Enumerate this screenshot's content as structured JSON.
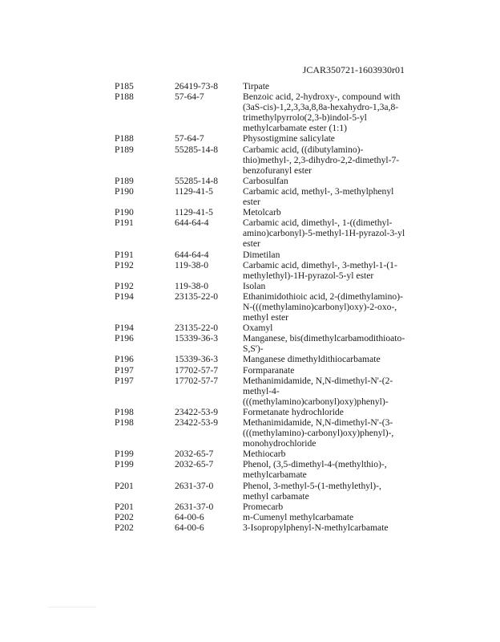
{
  "header": {
    "doc_id": "JCAR350721-1603930r01"
  },
  "rows": [
    {
      "code": "P185",
      "cas": "26419-73-8",
      "name": [
        "Tirpate"
      ]
    },
    {
      "code": "P188",
      "cas": "57-64-7",
      "name": [
        "Benzoic acid, 2-hydroxy-, compound with",
        "(3aS-cis)-1,2,3,3a,8,8a-hexahydro-1,3a,8-",
        "trimethylpyrrolo(2,3-b)indol-5-yl",
        "methylcarbamate ester (1:1)"
      ]
    },
    {
      "code": "P188",
      "cas": "57-64-7",
      "name": [
        "Physostigmine salicylate"
      ]
    },
    {
      "code": "P189",
      "cas": "55285-14-8",
      "name": [
        "Carbamic acid, ((dibutylamino)-",
        "thio)methyl-, 2,3-dihydro-2,2-dimethyl-7-",
        "benzofuranyl ester"
      ]
    },
    {
      "code": "P189",
      "cas": "55285-14-8",
      "name": [
        "Carbosulfan"
      ]
    },
    {
      "code": "P190",
      "cas": "1129-41-5",
      "name": [
        "Carbamic acid, methyl-, 3-methylphenyl",
        "ester"
      ]
    },
    {
      "code": "P190",
      "cas": "1129-41-5",
      "name": [
        "Metolcarb"
      ]
    },
    {
      "code": "P191",
      "cas": "644-64-4",
      "name": [
        "Carbamic acid, dimethyl-, 1-((dimethyl-",
        "amino)carbonyl)-5-methyl-1H-pyrazol-3-yl",
        "ester"
      ]
    },
    {
      "code": "P191",
      "cas": "644-64-4",
      "name": [
        "Dimetilan"
      ]
    },
    {
      "code": "P192",
      "cas": "119-38-0",
      "name": [
        "Carbamic acid, dimethyl-, 3-methyl-1-(1-",
        "methylethyl)-1H-pyrazol-5-yl ester"
      ]
    },
    {
      "code": "P192",
      "cas": "119-38-0",
      "name": [
        "Isolan"
      ]
    },
    {
      "code": "P194",
      "cas": "23135-22-0",
      "name": [
        "Ethanimidothioic acid, 2-(dimethylamino)-",
        "N-(((methylamino)carbonyl)oxy)-2-oxo-,",
        "methyl ester"
      ]
    },
    {
      "code": "P194",
      "cas": "23135-22-0",
      "name": [
        "Oxamyl"
      ]
    },
    {
      "code": "P196",
      "cas": "15339-36-3",
      "name": [
        "Manganese, bis(dimethylcarbamodithioato-",
        "S,S')-"
      ]
    },
    {
      "code": "P196",
      "cas": "15339-36-3",
      "name": [
        "Manganese dimethyldithiocarbamate"
      ]
    },
    {
      "code": "P197",
      "cas": "17702-57-7",
      "name": [
        "Formparanate"
      ]
    },
    {
      "code": "P197",
      "cas": "17702-57-7",
      "name": [
        "Methanimidamide, N,N-dimethyl-N'-(2-",
        "methyl-4-",
        "(((methylamino)carbonyl)oxy)phenyl)-"
      ]
    },
    {
      "code": "P198",
      "cas": "23422-53-9",
      "name": [
        "Formetanate hydrochloride"
      ]
    },
    {
      "code": "P198",
      "cas": "23422-53-9",
      "name": [
        "Methanimidamide, N,N-dimethyl-N'-(3-",
        "(((methylamino)-carbonyl)oxy)phenyl)-,",
        "monohydrochloride"
      ]
    },
    {
      "code": "P199",
      "cas": "2032-65-7",
      "name": [
        "Methiocarb"
      ]
    },
    {
      "code": "P199",
      "cas": "2032-65-7",
      "name": [
        "Phenol, (3,5-dimethyl-4-(methylthio)-,",
        "methylcarbamate"
      ]
    },
    {
      "code": "P201",
      "cas": "2631-37-0",
      "name": [
        "Phenol, 3-methyl-5-(1-methylethyl)-,",
        "methyl carbamate"
      ]
    },
    {
      "code": "P201",
      "cas": "2631-37-0",
      "name": [
        "Promecarb"
      ]
    },
    {
      "code": "P202",
      "cas": "64-00-6",
      "name": [
        "m-Cumenyl methylcarbamate"
      ]
    },
    {
      "code": "P202",
      "cas": "64-00-6",
      "name": [
        "3-Isopropylphenyl-N-methylcarbamate"
      ]
    }
  ]
}
